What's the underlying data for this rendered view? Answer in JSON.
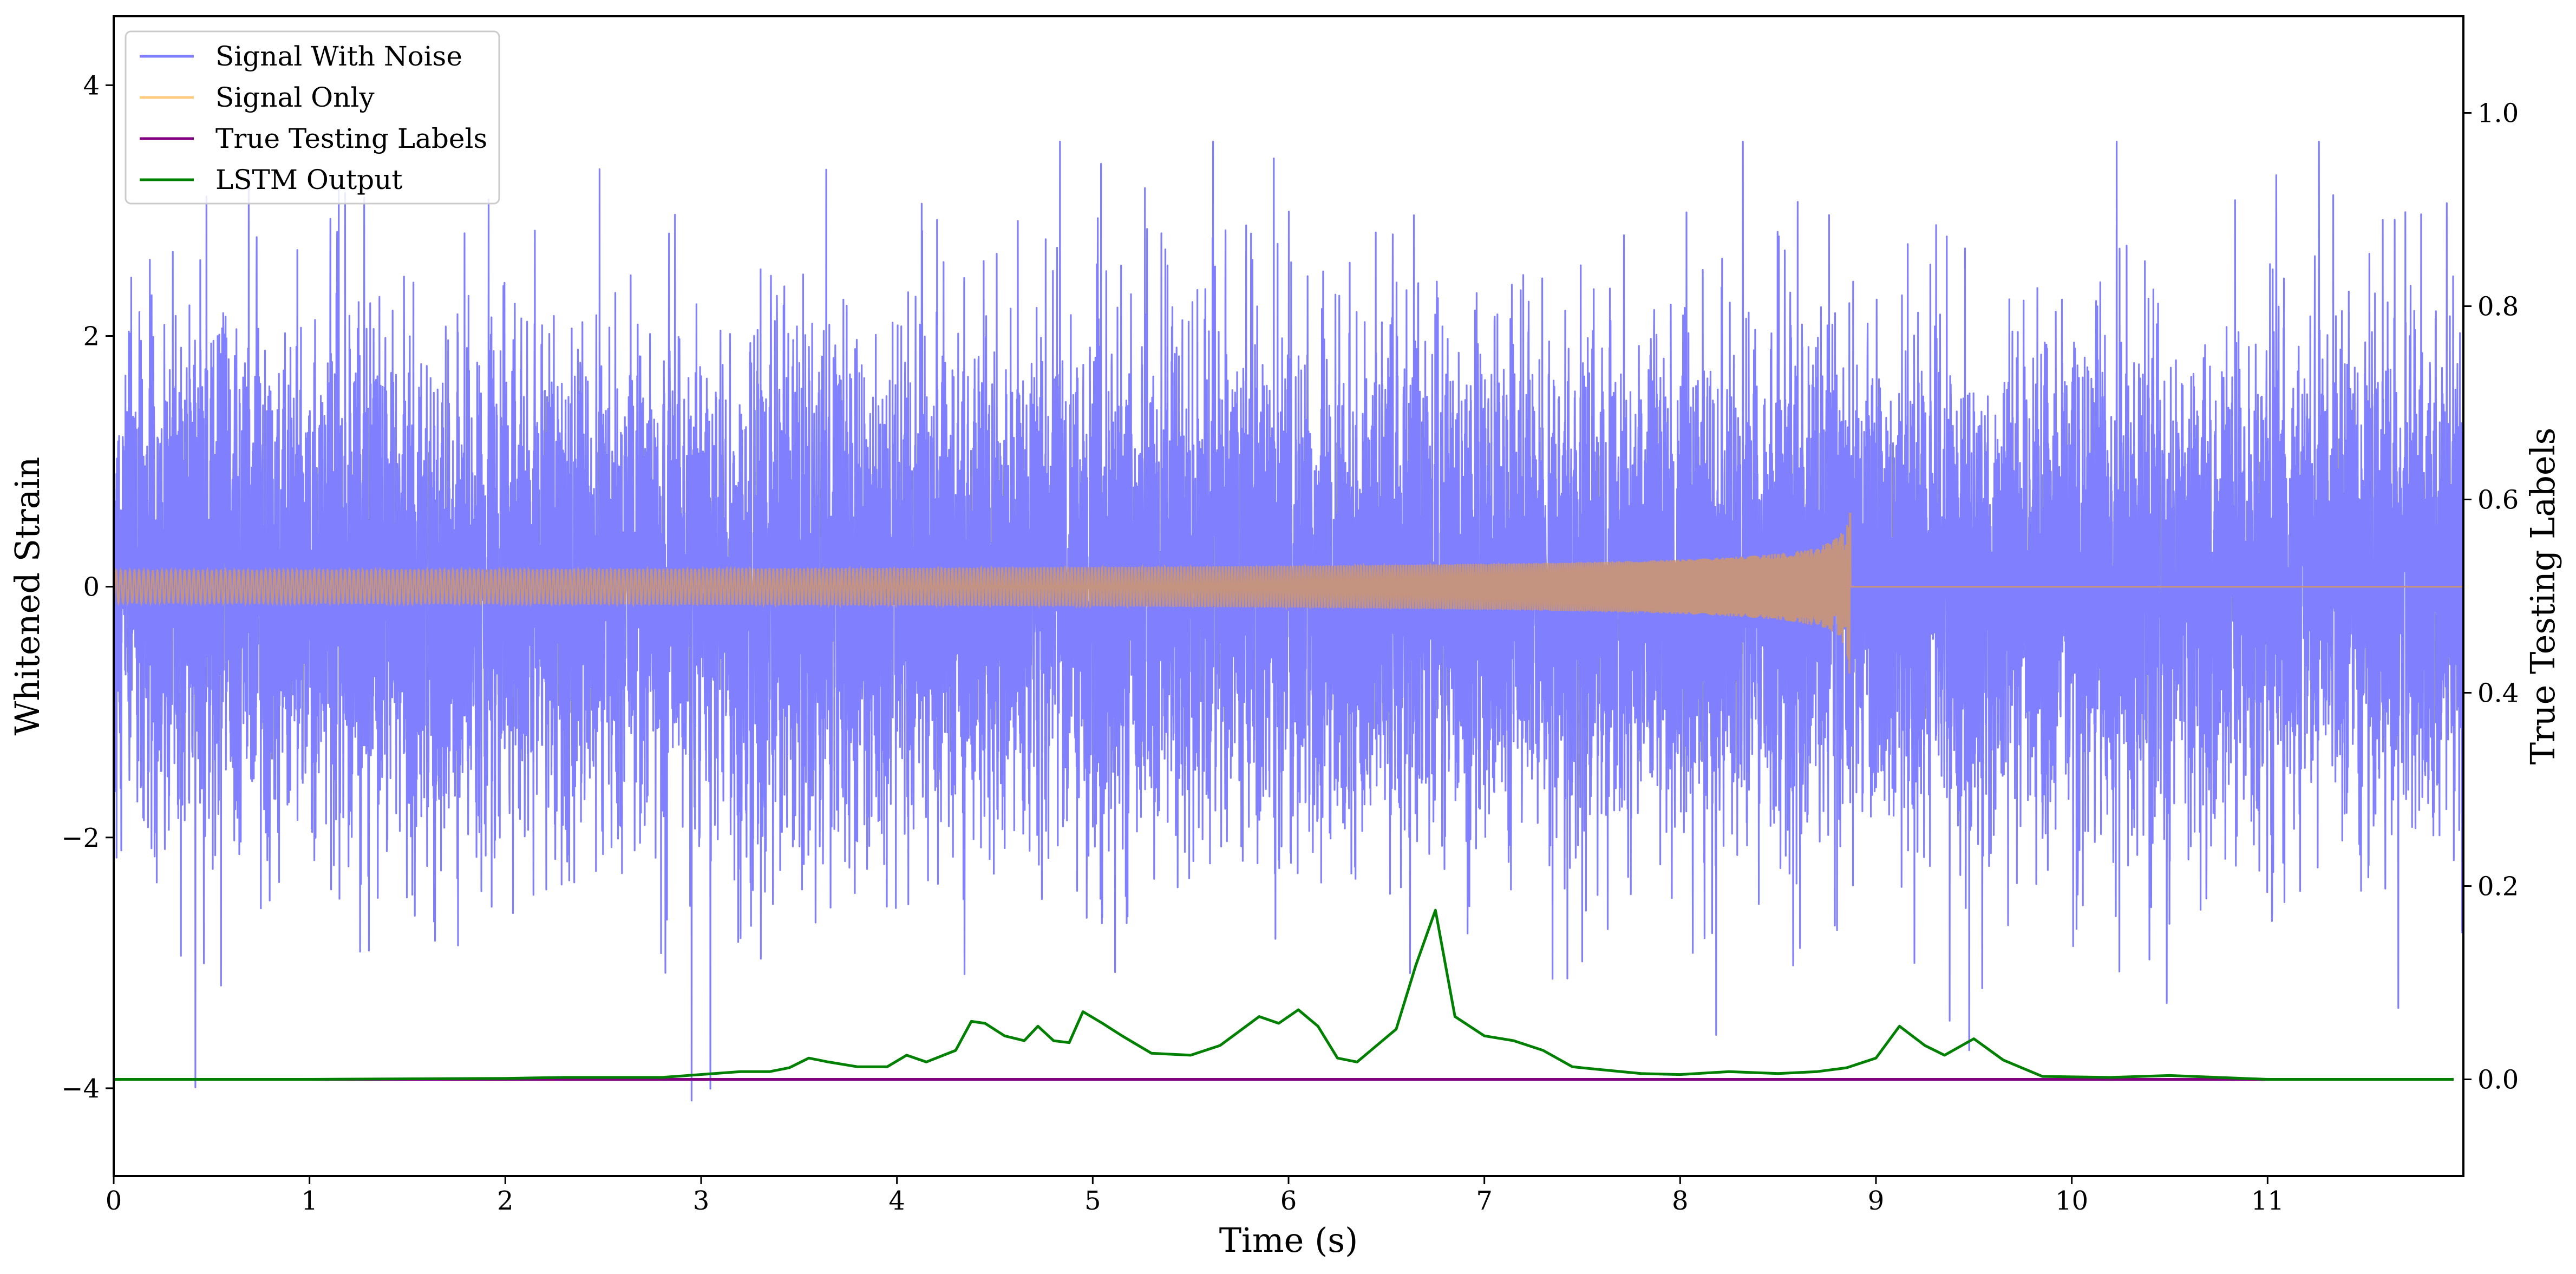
{
  "chart_data": {
    "type": "line",
    "xlabel": "Time (s)",
    "ylabel": "Whitened Strain",
    "y2label": "True Testing Labels",
    "xlim": [
      0,
      12
    ],
    "ylim": [
      -4.7,
      4.55
    ],
    "y2lim": [
      -0.1,
      1.1
    ],
    "x_ticks": [
      "0",
      "1",
      "2",
      "3",
      "4",
      "5",
      "6",
      "7",
      "8",
      "9",
      "10",
      "11"
    ],
    "y_ticks": [
      "−4",
      "−2",
      "0",
      "2",
      "4"
    ],
    "y2_ticks": [
      "0.0",
      "0.2",
      "0.4",
      "0.6",
      "0.8",
      "1.0"
    ],
    "x_tick_values": [
      0,
      1,
      2,
      3,
      4,
      5,
      6,
      7,
      8,
      9,
      10,
      11
    ],
    "y_tick_values": [
      -4,
      -2,
      0,
      2,
      4
    ],
    "y2_tick_values": [
      0,
      0.2,
      0.4,
      0.6,
      0.8,
      1.0
    ],
    "legend_position": "top-left",
    "grid": false,
    "colors": {
      "noise": "#8080ff",
      "signal": "#ffcc80",
      "signal_overlap": "#c49480",
      "labels": "#800080",
      "lstm": "#008000"
    },
    "series": [
      {
        "name": "Signal With Noise",
        "axis": "left",
        "style": "noise",
        "amplitude_std": 1.0,
        "min": -4.28,
        "max": 3.55,
        "x_range": [
          0,
          12
        ]
      },
      {
        "name": "Signal Only",
        "axis": "left",
        "style": "chirp",
        "t_merger": 8.87,
        "peak_amplitude": 0.78,
        "x_range": [
          0,
          12
        ]
      },
      {
        "name": "True Testing Labels",
        "axis": "right",
        "x": [
          0,
          11.95
        ],
        "y": [
          0,
          0
        ]
      },
      {
        "name": "LSTM Output",
        "axis": "right",
        "x": [
          0,
          1.0,
          2.0,
          2.3,
          2.8,
          3.2,
          3.35,
          3.45,
          3.55,
          3.65,
          3.8,
          3.95,
          4.05,
          4.15,
          4.3,
          4.38,
          4.45,
          4.55,
          4.65,
          4.72,
          4.8,
          4.88,
          4.95,
          5.05,
          5.15,
          5.3,
          5.5,
          5.65,
          5.75,
          5.85,
          5.95,
          6.05,
          6.15,
          6.25,
          6.35,
          6.45,
          6.55,
          6.65,
          6.75,
          6.85,
          7.0,
          7.15,
          7.3,
          7.45,
          7.6,
          7.8,
          8.0,
          8.25,
          8.5,
          8.7,
          8.85,
          9.0,
          9.12,
          9.25,
          9.35,
          9.5,
          9.65,
          9.85,
          10.2,
          10.5,
          11.0,
          11.95
        ],
        "y": [
          0.0,
          0.0,
          0.001,
          0.002,
          0.002,
          0.008,
          0.008,
          0.012,
          0.022,
          0.018,
          0.013,
          0.013,
          0.025,
          0.018,
          0.03,
          0.06,
          0.058,
          0.045,
          0.04,
          0.055,
          0.04,
          0.038,
          0.07,
          0.058,
          0.045,
          0.027,
          0.025,
          0.035,
          0.05,
          0.065,
          0.058,
          0.072,
          0.055,
          0.022,
          0.018,
          0.035,
          0.052,
          0.118,
          0.175,
          0.065,
          0.045,
          0.04,
          0.03,
          0.013,
          0.01,
          0.006,
          0.005,
          0.008,
          0.006,
          0.008,
          0.012,
          0.022,
          0.055,
          0.035,
          0.025,
          0.042,
          0.02,
          0.003,
          0.002,
          0.004,
          0.0,
          0.0
        ]
      }
    ]
  }
}
